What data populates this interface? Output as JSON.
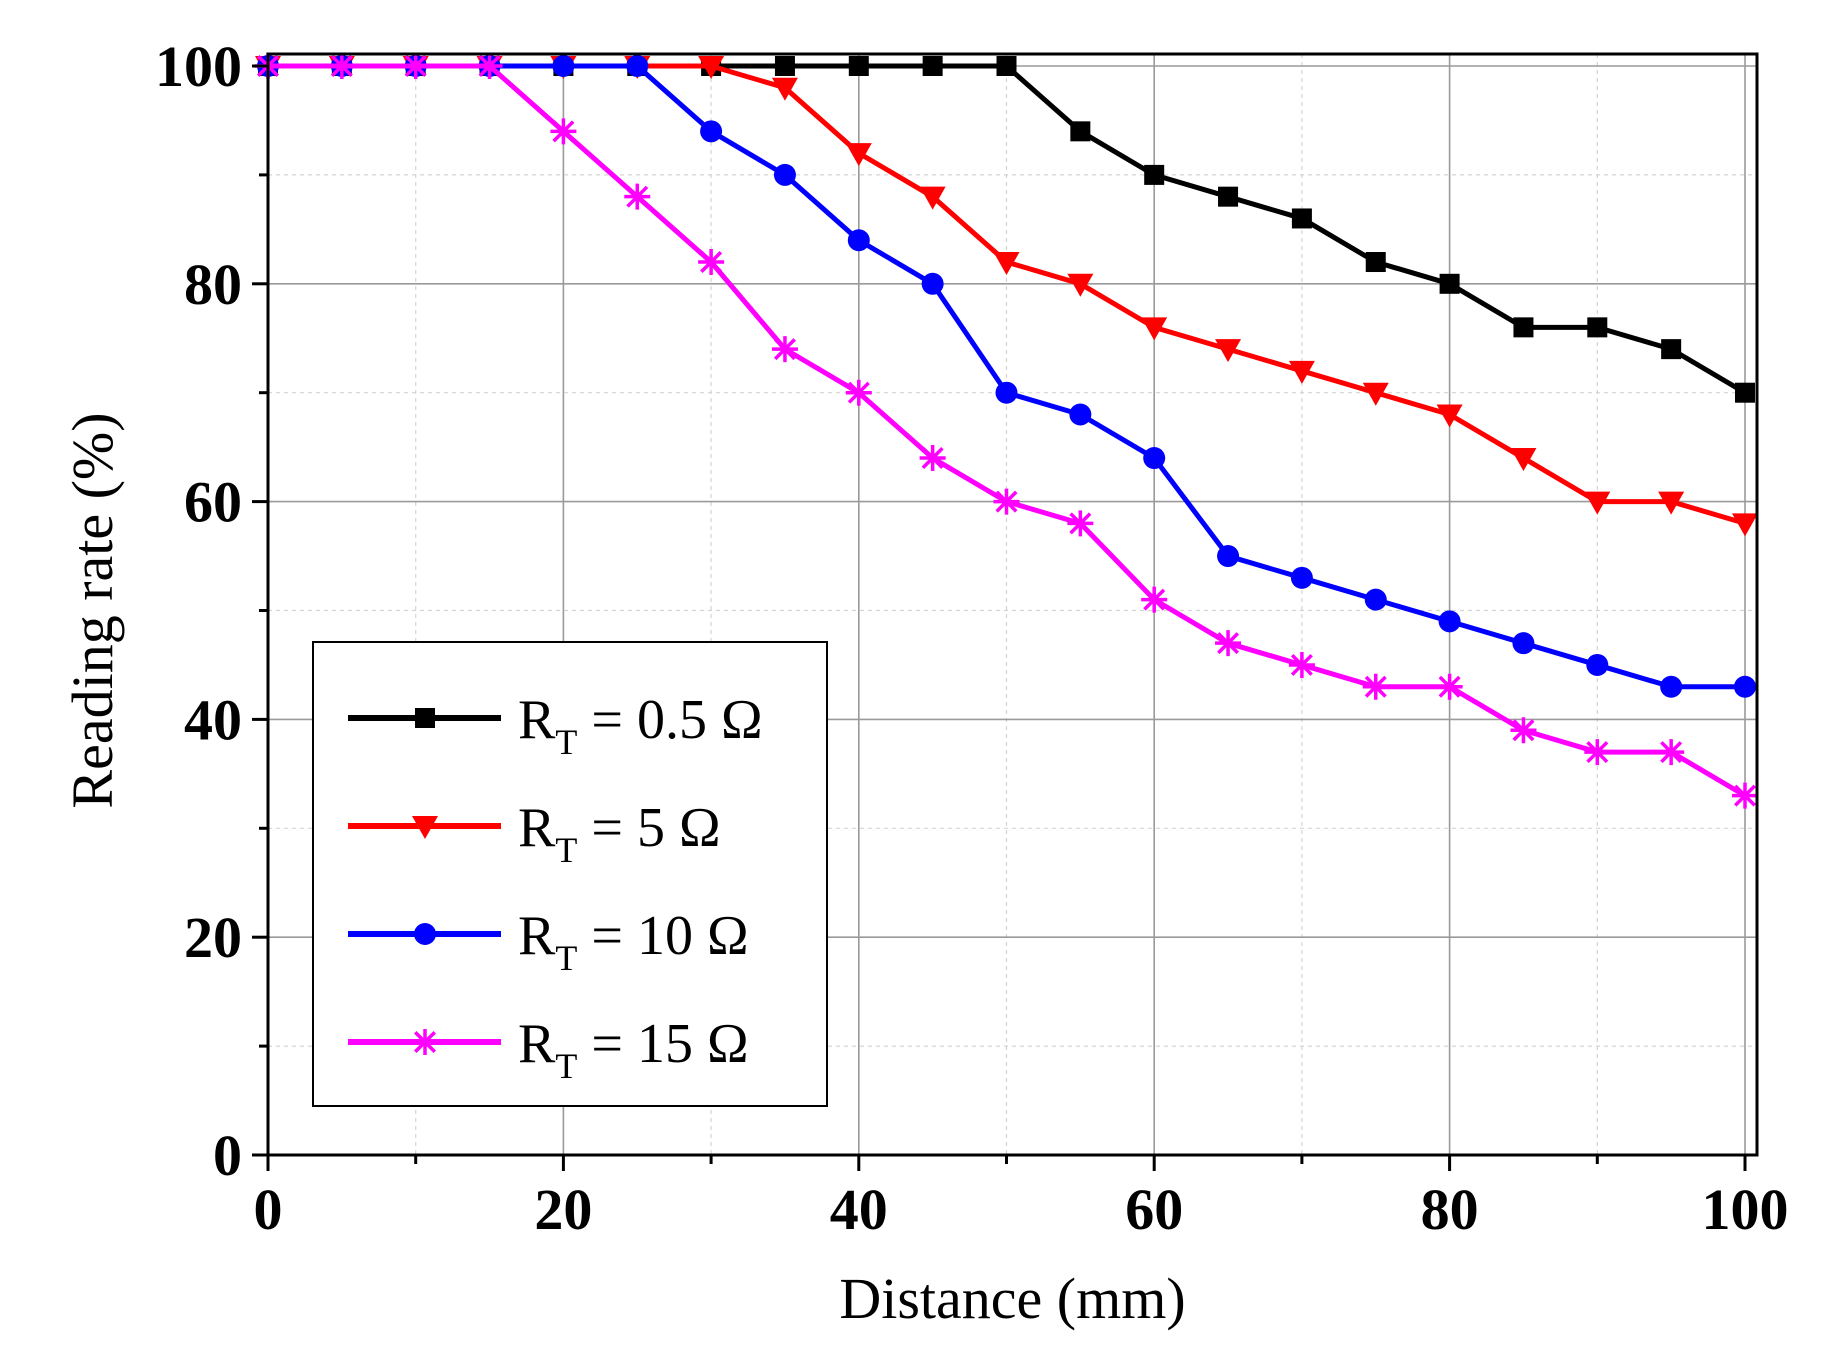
{
  "chart_data": {
    "type": "line",
    "title": "",
    "xlabel": "Distance (mm)",
    "ylabel": "Reading rate (%)",
    "xlim": [
      0,
      100
    ],
    "ylim": [
      0,
      100
    ],
    "xticks": [
      0,
      20,
      40,
      60,
      80,
      100
    ],
    "yticks": [
      0,
      20,
      40,
      60,
      80,
      100
    ],
    "x_tick_labels": [
      "0",
      "20",
      "40",
      "60",
      "80",
      "100"
    ],
    "y_tick_labels": [
      "0",
      "20",
      "40",
      "60",
      "80",
      "100"
    ],
    "grid": true,
    "legend_position": "bottom-left",
    "x": [
      0,
      5,
      10,
      15,
      20,
      25,
      30,
      35,
      40,
      45,
      50,
      55,
      60,
      65,
      70,
      75,
      80,
      85,
      90,
      95,
      100
    ],
    "series": [
      {
        "name": "RT = 0.5 Ω",
        "label_main": "R",
        "label_sub": "T",
        "label_rest": " = 0.5 Ω",
        "color": "#000000",
        "marker": "square",
        "values": [
          100,
          100,
          100,
          100,
          100,
          100,
          100,
          100,
          100,
          100,
          100,
          94,
          90,
          88,
          86,
          82,
          80,
          76,
          76,
          74,
          70
        ]
      },
      {
        "name": "RT = 5 Ω",
        "label_main": "R",
        "label_sub": "T",
        "label_rest": " = 5 Ω",
        "color": "#ff0000",
        "marker": "triangle-down",
        "values": [
          100,
          100,
          100,
          100,
          100,
          100,
          100,
          98,
          92,
          88,
          82,
          80,
          76,
          74,
          72,
          70,
          68,
          64,
          60,
          60,
          58
        ]
      },
      {
        "name": "RT = 10 Ω",
        "label_main": "R",
        "label_sub": "T",
        "label_rest": " = 10 Ω",
        "color": "#0000ff",
        "marker": "circle",
        "values": [
          100,
          100,
          100,
          100,
          100,
          100,
          94,
          90,
          84,
          80,
          70,
          68,
          64,
          55,
          53,
          51,
          49,
          47,
          45,
          43,
          43
        ]
      },
      {
        "name": "RT = 15 Ω",
        "label_main": "R",
        "label_sub": "T",
        "label_rest": " = 15 Ω",
        "color": "#ff00ff",
        "marker": "asterisk",
        "values": [
          100,
          100,
          100,
          100,
          94,
          88,
          82,
          74,
          70,
          64,
          60,
          58,
          51,
          47,
          45,
          43,
          43,
          39,
          37,
          37,
          33
        ]
      }
    ]
  }
}
